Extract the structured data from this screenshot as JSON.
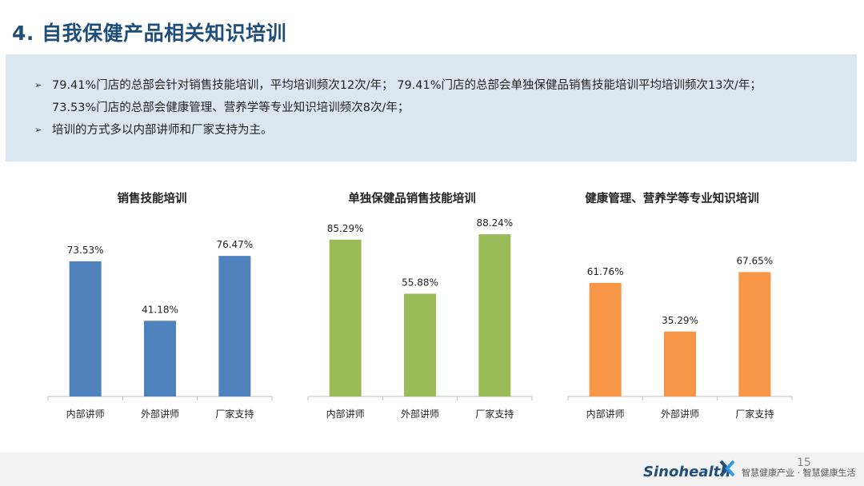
{
  "slide": {
    "title": "4. 自我保健产品相关知识培训",
    "bullets": [
      {
        "arrow": "➢",
        "lines": [
          "79.41%门店的总部会针对销售技能培训，平均培训频次12次/年； 79.41%门店的总部会单独保健品销售技能培训平均培训频次13次/年；",
          "73.53%门店的总部会健康管理、营养学等专业知识培训频次8次/年；"
        ]
      },
      {
        "arrow": "➢",
        "lines": [
          "培训的方式多以内部讲师和厂家支持为主。"
        ]
      }
    ]
  },
  "chart_data": [
    {
      "type": "bar",
      "title": "销售技能培训",
      "categories": [
        "内部讲师",
        "外部讲师",
        "厂家支持"
      ],
      "values": [
        73.53,
        41.18,
        76.47
      ],
      "labels": [
        "73.53%",
        "41.18%",
        "76.47%"
      ],
      "ylim": [
        0,
        100
      ],
      "color": "#4f81bd",
      "grid": false,
      "legend": "none"
    },
    {
      "type": "bar",
      "title": "单独保健品销售技能培训",
      "categories": [
        "内部讲师",
        "外部讲师",
        "厂家支持"
      ],
      "values": [
        85.29,
        55.88,
        88.24
      ],
      "labels": [
        "85.29%",
        "55.88%",
        "88.24%"
      ],
      "ylim": [
        0,
        100
      ],
      "color": "#9bbb59",
      "grid": false,
      "legend": "none"
    },
    {
      "type": "bar",
      "title": "健康管理、营养学等专业知识培训",
      "categories": [
        "内部讲师",
        "外部讲师",
        "厂家支持"
      ],
      "values": [
        61.76,
        35.29,
        67.65
      ],
      "labels": [
        "61.76%",
        "35.29%",
        "67.65%"
      ],
      "ylim": [
        0,
        100
      ],
      "color": "#f79646",
      "grid": false,
      "legend": "none"
    }
  ],
  "footer": {
    "page_number": "15",
    "brand": "Sinohealth",
    "brand_icon": "sinohealth-x-logo-icon",
    "slogan": "智慧健康产业 · 智慧健康生活"
  }
}
